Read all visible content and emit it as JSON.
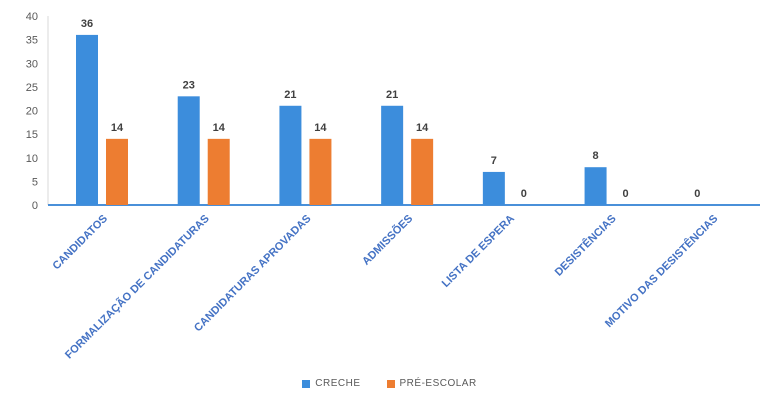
{
  "chart_data": {
    "type": "bar",
    "categories": [
      "CANDIDATOS",
      "FORMALIZAÇÃO DE CANDIDATURAS",
      "CANDIDATURAS APROVADAS",
      "ADMISSÕES",
      "LISTA DE ESPERA",
      "DESISTÊNCIAS",
      "MOTIVO DAS DESISTÊNCIAS"
    ],
    "series": [
      {
        "name": "CRECHE",
        "color": "#3C8DDC",
        "values": [
          36,
          23,
          21,
          21,
          7,
          8,
          0
        ]
      },
      {
        "name": "PRÉ-ESCOLAR",
        "color": "#ED7D31",
        "values": [
          14,
          14,
          14,
          14,
          0,
          0,
          null
        ]
      }
    ],
    "data_labels": [
      [
        "36",
        "23",
        "21",
        "21",
        "7",
        "8",
        "0"
      ],
      [
        "14",
        "14",
        "14",
        "14",
        "0",
        "0",
        ""
      ]
    ],
    "ylim": [
      0,
      40
    ],
    "yticks": [
      0,
      5,
      10,
      15,
      20,
      25,
      30,
      35,
      40
    ],
    "grid": false,
    "legend_position": "bottom",
    "title": "",
    "xlabel": "",
    "ylabel": ""
  }
}
